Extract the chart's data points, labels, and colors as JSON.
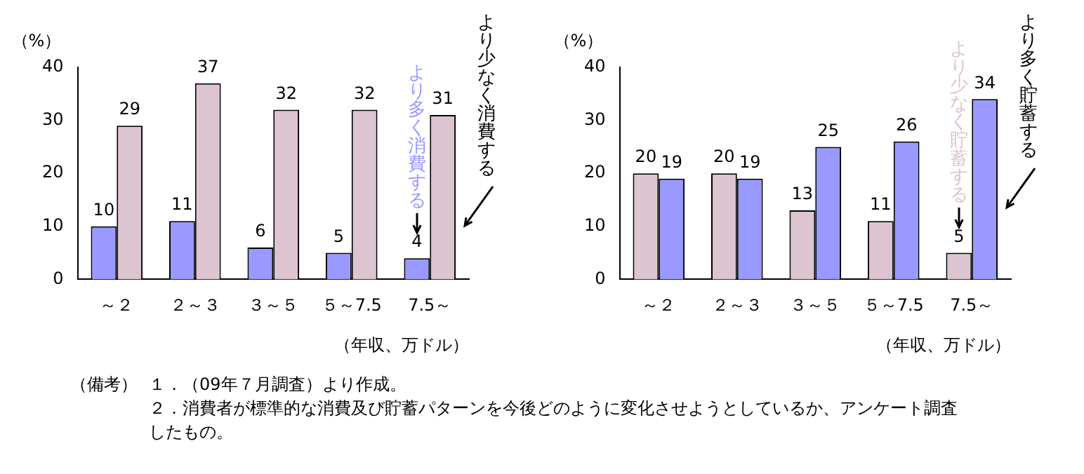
{
  "chart_data": [
    {
      "type": "bar",
      "categories": [
        "～２",
        "２～３",
        "３～５",
        "５～7.5",
        "7.5～"
      ],
      "xlabel": "（年収、万ドル）",
      "ylabel": "（%）",
      "ylim": [
        0,
        40
      ],
      "yticks": [
        0,
        10,
        20,
        30,
        40
      ],
      "grid": false,
      "legend": false,
      "data_labels": true,
      "series": [
        {
          "name": "より多く消費する",
          "color": "#9999ff",
          "values": [
            10,
            11,
            6,
            5,
            4
          ]
        },
        {
          "name": "より少なく消費する",
          "color": "#dcc4d0",
          "values": [
            29,
            37,
            32,
            32,
            31
          ]
        }
      ],
      "annotations": [
        "（備考）",
        "１．（09年７月調査）より作成。",
        "２．消費者が標準的な消費及び貯蓄パターンを今後どのように変化させようとしているか、アンケート調査したもの。"
      ]
    },
    {
      "type": "bar",
      "categories": [
        "～２",
        "２～３",
        "３～５",
        "５～7.5",
        "7.5～"
      ],
      "xlabel": "（年収、万ドル）",
      "ylabel": "（%）",
      "ylim": [
        0,
        40
      ],
      "yticks": [
        0,
        10,
        20,
        30,
        40
      ],
      "grid": false,
      "legend": false,
      "data_labels": true,
      "series": [
        {
          "name": "より少なく貯蓄する",
          "color": "#dcc4d0",
          "values": [
            20,
            20,
            13,
            11,
            5
          ]
        },
        {
          "name": "より多く貯蓄する",
          "color": "#9999ff",
          "values": [
            19,
            19,
            25,
            26,
            34
          ]
        }
      ]
    }
  ]
}
